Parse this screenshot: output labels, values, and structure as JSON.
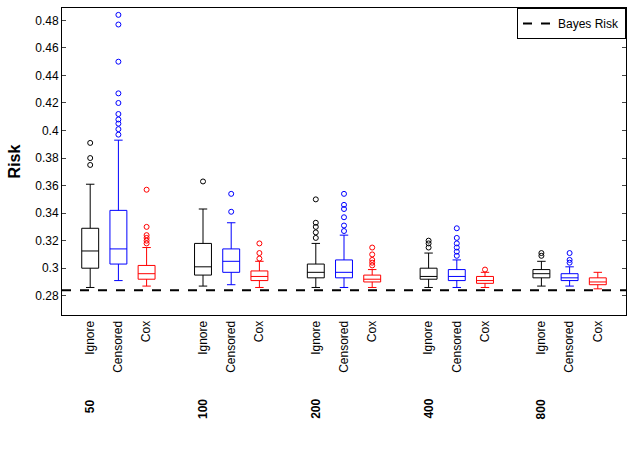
{
  "chart_data": {
    "type": "box",
    "y_label": "Risk",
    "groups": [
      "50",
      "100",
      "200",
      "400",
      "800"
    ],
    "ylim": [
      0.266,
      0.489
    ],
    "yticks": [
      0.28,
      0.3,
      0.32,
      0.34,
      0.36,
      0.38,
      0.4,
      0.42,
      0.44,
      0.46,
      0.48
    ],
    "marker": "circle-open",
    "legend": "upper right",
    "grid": false,
    "series": [
      {
        "name": "Ignore",
        "color": "#000000",
        "q1": [
          0.3,
          0.295,
          0.293,
          0.292,
          0.293
        ],
        "median": [
          0.3125,
          0.301,
          0.297,
          0.294,
          0.296
        ],
        "q3": [
          0.329,
          0.318,
          0.303,
          0.3,
          0.299
        ],
        "lower": [
          0.286,
          0.287,
          0.286,
          0.286,
          0.287
        ],
        "upper": [
          0.361,
          0.343,
          0.318,
          0.311,
          0.305
        ],
        "outliers": [
          [
            0.375,
            0.38,
            0.391
          ],
          [
            0.363
          ],
          [
            0.322,
            0.326,
            0.33,
            0.333,
            0.35
          ],
          [
            0.315,
            0.318,
            0.32
          ],
          [
            0.309,
            0.311
          ]
        ]
      },
      {
        "name": "Censored",
        "color": "#0000ff",
        "q1": [
          0.303,
          0.297,
          0.293,
          0.291,
          0.291
        ],
        "median": [
          0.314,
          0.305,
          0.297,
          0.294,
          0.293
        ],
        "q3": [
          0.342,
          0.314,
          0.306,
          0.299,
          0.296
        ],
        "lower": [
          0.291,
          0.288,
          0.286,
          0.286,
          0.287
        ],
        "upper": [
          0.393,
          0.333,
          0.324,
          0.306,
          0.301
        ],
        "outliers": [
          [
            0.397,
            0.401,
            0.405,
            0.408,
            0.412,
            0.42,
            0.427,
            0.45,
            0.477,
            0.484
          ],
          [
            0.341,
            0.354
          ],
          [
            0.327,
            0.331,
            0.337,
            0.343,
            0.346,
            0.354
          ],
          [
            0.309,
            0.312,
            0.315,
            0.318,
            0.322,
            0.329
          ],
          [
            0.304,
            0.306,
            0.311
          ]
        ]
      },
      {
        "name": "Cox",
        "color": "#ff0000",
        "q1": [
          0.292,
          0.291,
          0.29,
          0.289,
          0.288
        ],
        "median": [
          0.296,
          0.294,
          0.292,
          0.291,
          0.29
        ],
        "q3": [
          0.302,
          0.298,
          0.295,
          0.294,
          0.293
        ],
        "lower": [
          0.287,
          0.286,
          0.286,
          0.286,
          0.285
        ],
        "upper": [
          0.315,
          0.305,
          0.299,
          0.297,
          0.297
        ],
        "outliers": [
          [
            0.318,
            0.32,
            0.322,
            0.324,
            0.33,
            0.357
          ],
          [
            0.307,
            0.311,
            0.318
          ],
          [
            0.302,
            0.304,
            0.306,
            0.31,
            0.315
          ],
          [
            0.299
          ],
          []
        ]
      }
    ],
    "reference": {
      "name": "Bayes Risk",
      "value": 0.284,
      "color": "#000000",
      "line_style": "dash"
    }
  }
}
